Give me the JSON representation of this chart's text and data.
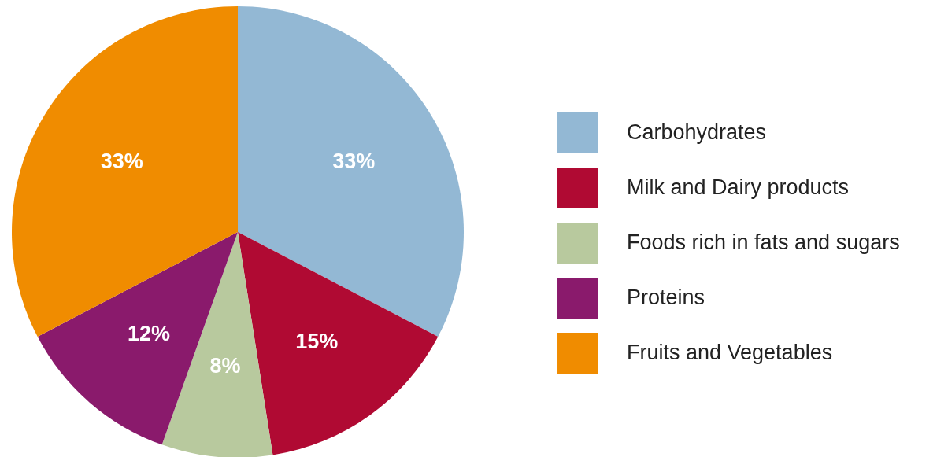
{
  "chart_data": {
    "type": "pie",
    "categories": [
      "Carbohydrates",
      "Milk and Dairy products",
      "Foods rich in fats and sugars",
      "Proteins",
      "Fruits and Vegetables"
    ],
    "values": [
      33,
      15,
      8,
      12,
      33
    ],
    "colors": [
      "#93b8d4",
      "#b00a33",
      "#b8c99e",
      "#8a1a6c",
      "#f08c00"
    ],
    "value_labels": [
      "33%",
      "15%",
      "8%",
      "12%",
      "33%"
    ],
    "legend": "right"
  }
}
